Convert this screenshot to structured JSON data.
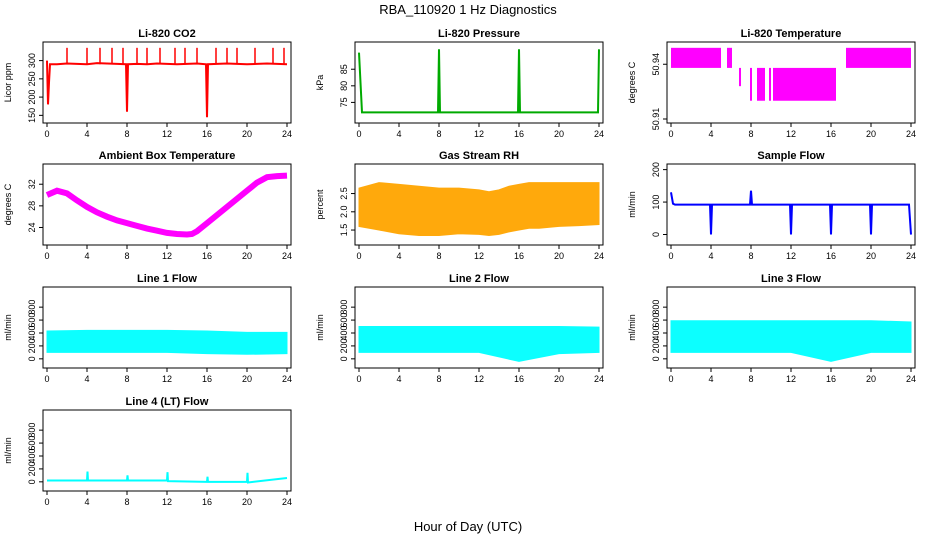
{
  "suptitle": "RBA_110920  1 Hz Diagnostics",
  "xlabel": "Hour of Day (UTC)",
  "chart_data": [
    {
      "type": "line",
      "title": "Li-820 CO2",
      "ylabel": "Licor ppm",
      "color": "#ff0000",
      "xlim": [
        0,
        24
      ],
      "ylim": [
        140,
        340
      ],
      "xticks": [
        "0",
        "4",
        "8",
        "12",
        "16",
        "20",
        "24"
      ],
      "yticks": [
        "150",
        "200",
        "250",
        "300"
      ],
      "series": [
        {
          "x": [
            0,
            0.1,
            0.2,
            0.3,
            1,
            2,
            3,
            4,
            5,
            6,
            7,
            7.9,
            8,
            8.1,
            9,
            10,
            11,
            12,
            13,
            14,
            15,
            15.9,
            16,
            16.1,
            17,
            18,
            19,
            20,
            21,
            22,
            23,
            24
          ],
          "y": [
            300,
            180,
            240,
            290,
            290,
            292,
            291,
            290,
            293,
            292,
            291,
            290,
            160,
            290,
            291,
            290,
            292,
            291,
            290,
            291,
            292,
            290,
            145,
            290,
            291,
            292,
            291,
            290,
            291,
            292,
            291,
            290
          ]
        }
      ],
      "spikes": {
        "x": [
          2,
          4,
          5.3,
          6.5,
          7.6,
          9,
          10,
          11.3,
          12.8,
          13.8,
          15,
          16.9,
          18,
          19,
          20.8,
          22.6,
          23.7
        ],
        "y": 335
      }
    },
    {
      "type": "line",
      "title": "Li-820 Pressure",
      "ylabel": "kPa",
      "color": "#00aa00",
      "xlim": [
        0,
        24
      ],
      "ylim": [
        70,
        92
      ],
      "xticks": [
        "0",
        "4",
        "8",
        "12",
        "16",
        "20",
        "24"
      ],
      "yticks": [
        "75",
        "80",
        "85"
      ],
      "series": [
        {
          "x": [
            0,
            0.3,
            1,
            4,
            7.9,
            8,
            8.1,
            12,
            15.9,
            16,
            16.1,
            20,
            23.9,
            24
          ],
          "y": [
            90,
            72,
            72,
            72,
            72,
            91,
            72,
            72,
            72,
            91,
            72,
            72,
            72,
            91
          ]
        }
      ]
    },
    {
      "type": "area",
      "title": "Li-820 Temperature",
      "ylabel": "degrees C",
      "color": "#ff00ff",
      "xlim": [
        0,
        24
      ],
      "ylim": [
        50.91,
        50.95
      ],
      "xticks": [
        "0",
        "4",
        "8",
        "12",
        "16",
        "20",
        "24"
      ],
      "yticks": [
        "50.91",
        "50.94"
      ],
      "bands": [
        [
          0,
          5,
          50.938,
          50.949
        ],
        [
          5.6,
          6.1,
          50.938,
          50.949
        ],
        [
          6.8,
          7,
          50.928,
          50.938
        ],
        [
          7.9,
          8.1,
          50.92,
          50.938
        ],
        [
          8.6,
          9.4,
          50.92,
          50.938
        ],
        [
          9.8,
          10,
          50.92,
          50.938
        ],
        [
          10.2,
          16.5,
          50.92,
          50.938
        ],
        [
          17.5,
          18,
          50.938,
          50.949
        ],
        [
          18,
          24,
          50.938,
          50.949
        ]
      ]
    },
    {
      "type": "line",
      "title": "Ambient Box Temperature",
      "ylabel": "degrees C",
      "color": "#ff00ff",
      "xlim": [
        0,
        24
      ],
      "ylim": [
        21.5,
        35
      ],
      "xticks": [
        "0",
        "4",
        "8",
        "12",
        "16",
        "20",
        "24"
      ],
      "yticks": [
        "24",
        "28",
        "32"
      ],
      "series": [
        {
          "x": [
            0,
            1,
            2,
            3,
            4,
            5,
            6,
            7,
            8,
            9,
            10,
            11,
            12,
            13,
            14,
            14.5,
            15,
            16,
            17,
            18,
            19,
            20,
            21,
            22,
            23,
            24
          ],
          "y": [
            30,
            30.8,
            30.3,
            29,
            27.8,
            26.8,
            26,
            25.3,
            24.8,
            24.3,
            23.8,
            23.4,
            23,
            22.8,
            22.7,
            22.8,
            23.3,
            24.8,
            26.3,
            27.8,
            29.3,
            30.8,
            32.3,
            33.3,
            33.5,
            33.6
          ]
        }
      ]
    },
    {
      "type": "area",
      "title": "Gas Stream RH",
      "ylabel": "percent",
      "color": "#ffa500",
      "xlim": [
        0,
        24
      ],
      "ylim": [
        1.2,
        3.2
      ],
      "xticks": [
        "0",
        "4",
        "8",
        "12",
        "16",
        "20",
        "24"
      ],
      "yticks": [
        "1.5",
        "2.0",
        "2.5"
      ],
      "series": [
        {
          "name": "upper",
          "x": [
            0,
            2,
            4,
            6,
            8,
            10,
            12,
            13,
            14,
            15,
            16,
            17,
            18,
            20,
            22,
            24
          ],
          "y": [
            2.65,
            2.8,
            2.75,
            2.7,
            2.65,
            2.65,
            2.6,
            2.55,
            2.6,
            2.7,
            2.75,
            2.8,
            2.8,
            2.8,
            2.8,
            2.8
          ]
        },
        {
          "name": "lower",
          "x": [
            0,
            2,
            4,
            6,
            8,
            10,
            12,
            13,
            14,
            15,
            16,
            17,
            18,
            20,
            22,
            24
          ],
          "y": [
            1.6,
            1.5,
            1.4,
            1.35,
            1.35,
            1.4,
            1.38,
            1.35,
            1.38,
            1.45,
            1.5,
            1.55,
            1.55,
            1.6,
            1.62,
            1.65
          ]
        }
      ]
    },
    {
      "type": "line",
      "title": "Sample Flow",
      "ylabel": "ml/min",
      "color": "#0000ff",
      "xlim": [
        0,
        24
      ],
      "ylim": [
        -20,
        205
      ],
      "xticks": [
        "0",
        "4",
        "8",
        "12",
        "16",
        "20",
        "24"
      ],
      "yticks": [
        "0",
        "100",
        "200"
      ],
      "series": [
        {
          "x": [
            0,
            0.2,
            0.4,
            3.9,
            4,
            4.1,
            7.9,
            8,
            8.1,
            11.9,
            12,
            12.1,
            15.9,
            16,
            16.1,
            19.9,
            20,
            20.1,
            23.8,
            24
          ],
          "y": [
            130,
            95,
            92,
            92,
            0,
            92,
            92,
            135,
            92,
            92,
            0,
            92,
            92,
            0,
            92,
            92,
            0,
            92,
            92,
            0
          ]
        }
      ]
    },
    {
      "type": "area",
      "title": "Line 1 Flow",
      "ylabel": "ml/min",
      "color": "#00ffff",
      "xlim": [
        0,
        24
      ],
      "ylim": [
        -80,
        1050
      ],
      "xticks": [
        "0",
        "4",
        "8",
        "12",
        "16",
        "20",
        "24"
      ],
      "yticks": [
        "0",
        "200",
        "400",
        "600",
        "800"
      ],
      "series": [
        {
          "name": "upper",
          "x": [
            0,
            4,
            8,
            12,
            16,
            20,
            24
          ],
          "y": [
            430,
            440,
            440,
            440,
            430,
            410,
            410
          ]
        },
        {
          "name": "lower",
          "x": [
            0,
            4,
            8,
            12,
            16,
            20,
            24
          ],
          "y": [
            100,
            100,
            100,
            100,
            80,
            70,
            80
          ]
        }
      ]
    },
    {
      "type": "area",
      "title": "Line 2 Flow",
      "ylabel": "ml/min",
      "color": "#00ffff",
      "xlim": [
        0,
        24
      ],
      "ylim": [
        -80,
        1050
      ],
      "xticks": [
        "0",
        "4",
        "8",
        "12",
        "16",
        "20",
        "24"
      ],
      "yticks": [
        "0",
        "200",
        "400",
        "600",
        "800"
      ],
      "series": [
        {
          "name": "upper",
          "x": [
            0,
            4,
            8,
            12,
            16,
            20,
            24
          ],
          "y": [
            500,
            500,
            500,
            500,
            500,
            500,
            490
          ]
        },
        {
          "name": "lower",
          "x": [
            0,
            4,
            8,
            12,
            16,
            20,
            24
          ],
          "y": [
            100,
            100,
            100,
            100,
            -40,
            80,
            100
          ]
        }
      ]
    },
    {
      "type": "area",
      "title": "Line 3 Flow",
      "ylabel": "ml/min",
      "color": "#00ffff",
      "xlim": [
        0,
        24
      ],
      "ylim": [
        -80,
        1050
      ],
      "xticks": [
        "0",
        "4",
        "8",
        "12",
        "16",
        "20",
        "24"
      ],
      "yticks": [
        "0",
        "200",
        "400",
        "600",
        "800"
      ],
      "series": [
        {
          "name": "upper",
          "x": [
            0,
            4,
            8,
            12,
            16,
            20,
            24
          ],
          "y": [
            590,
            590,
            590,
            590,
            590,
            590,
            570
          ]
        },
        {
          "name": "lower",
          "x": [
            0,
            4,
            8,
            12,
            16,
            20,
            24
          ],
          "y": [
            100,
            100,
            100,
            100,
            -40,
            100,
            100
          ]
        }
      ]
    },
    {
      "type": "line",
      "title": "Line 4 (LT) Flow",
      "ylabel": "ml/min",
      "color": "#00ffff",
      "xlim": [
        0,
        24
      ],
      "ylim": [
        -80,
        1050
      ],
      "xticks": [
        "0",
        "4",
        "8",
        "12",
        "16",
        "20",
        "24"
      ],
      "yticks": [
        "0",
        "200",
        "400",
        "600",
        "800"
      ],
      "series": [
        {
          "x": [
            0,
            4,
            4.05,
            4.1,
            8,
            8.05,
            8.1,
            12,
            12.05,
            12.1,
            16,
            16.05,
            16.1,
            20,
            20.05,
            20.1,
            24
          ],
          "y": [
            20,
            20,
            160,
            20,
            20,
            100,
            20,
            20,
            150,
            10,
            0,
            80,
            0,
            0,
            140,
            -10,
            60
          ]
        }
      ]
    }
  ]
}
